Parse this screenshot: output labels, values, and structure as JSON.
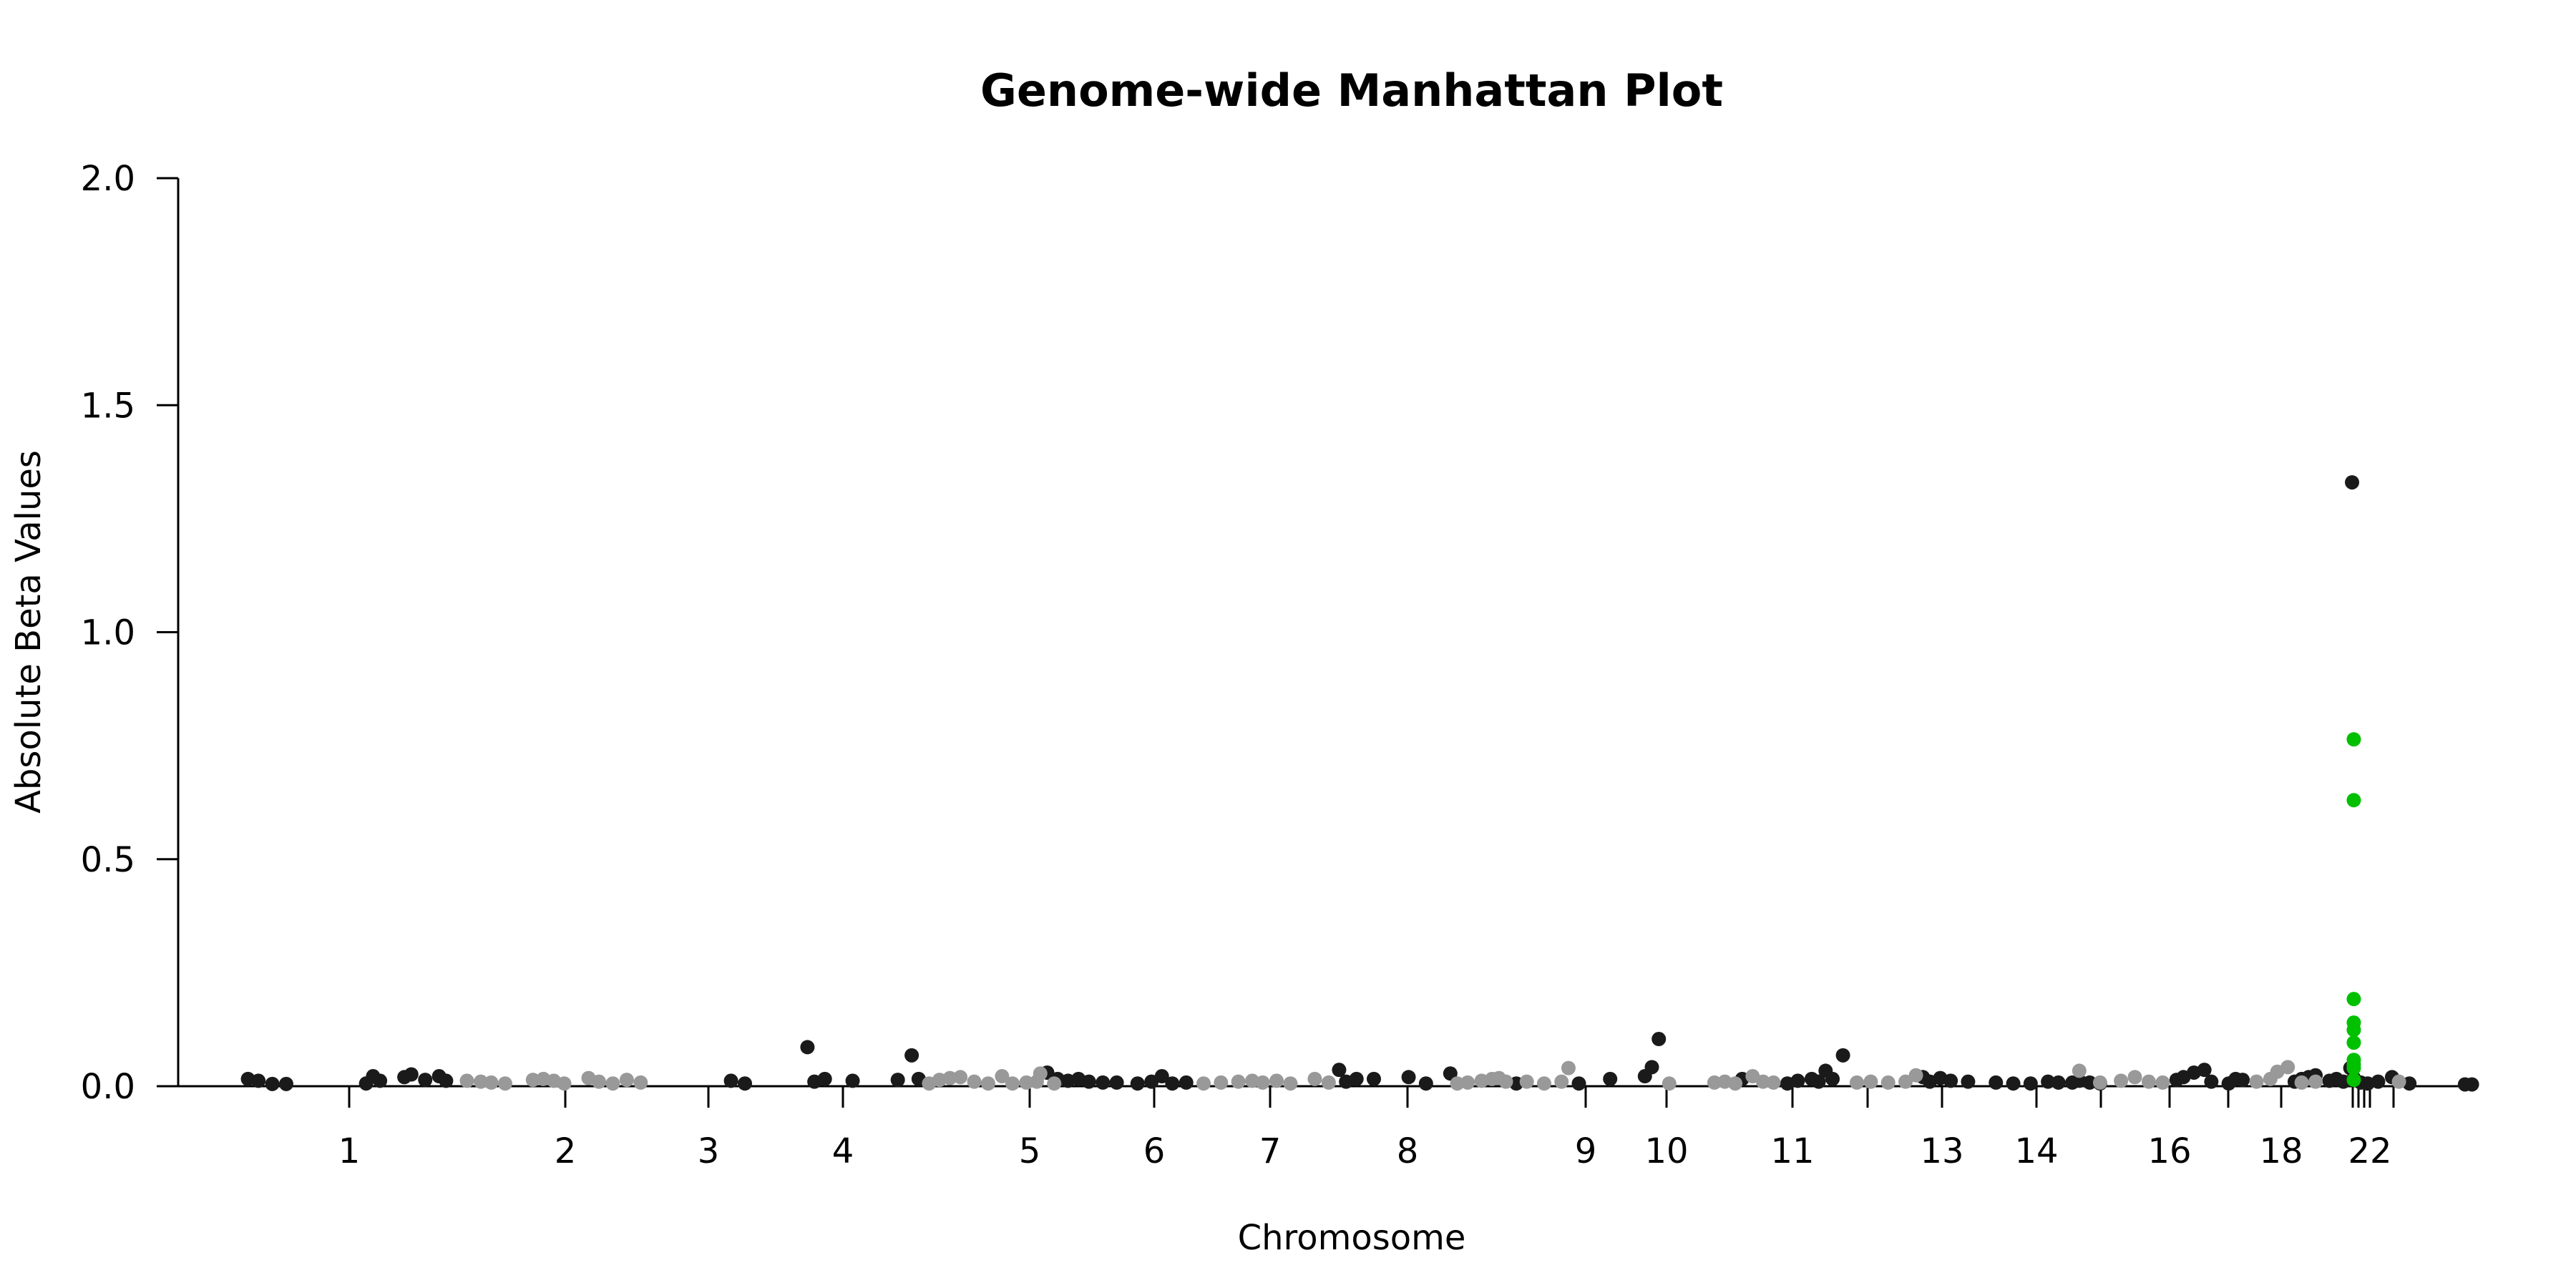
{
  "chart_data": {
    "type": "scatter",
    "title": "Genome-wide Manhattan Plot",
    "xlabel": "Chromosome",
    "ylabel": "Absolute Beta Values",
    "ylim": [
      0,
      2.0
    ],
    "y_ticks": [
      "0.0",
      "0.5",
      "1.0",
      "1.5",
      "2.0"
    ],
    "x_tick_labels": [
      "1",
      "2",
      "3",
      "4",
      "5",
      "6",
      "7",
      "8",
      "9",
      "10",
      "11",
      "13",
      "14",
      "16",
      "18",
      "22"
    ],
    "colors": {
      "dark": "#1a1a1a",
      "light": "#999999",
      "highlight": "#00c000"
    },
    "grid": false,
    "legend": "none",
    "series": [
      {
        "color_key": "dark",
        "points": [
          [
            0.3,
            0.016
          ],
          [
            0.6,
            0.012
          ],
          [
            1.0,
            0.005
          ],
          [
            1.4,
            0.005
          ],
          [
            3.7,
            0.006
          ],
          [
            3.9,
            0.022
          ],
          [
            4.1,
            0.012
          ],
          [
            4.8,
            0.02
          ],
          [
            5.0,
            0.026
          ],
          [
            5.4,
            0.014
          ],
          [
            5.8,
            0.022
          ],
          [
            6.0,
            0.012
          ],
          [
            14.2,
            0.012
          ],
          [
            14.6,
            0.006
          ],
          [
            16.4,
            0.086
          ],
          [
            16.6,
            0.01
          ],
          [
            16.9,
            0.016
          ],
          [
            17.7,
            0.012
          ],
          [
            19.0,
            0.014
          ],
          [
            19.4,
            0.068
          ],
          [
            19.6,
            0.016
          ],
          [
            23.3,
            0.03
          ],
          [
            23.6,
            0.016
          ],
          [
            23.9,
            0.012
          ],
          [
            24.2,
            0.016
          ],
          [
            24.5,
            0.01
          ],
          [
            24.9,
            0.008
          ],
          [
            25.3,
            0.008
          ],
          [
            25.9,
            0.006
          ],
          [
            26.3,
            0.01
          ],
          [
            26.6,
            0.022
          ],
          [
            26.9,
            0.006
          ],
          [
            27.3,
            0.008
          ],
          [
            31.7,
            0.036
          ],
          [
            31.9,
            0.01
          ],
          [
            32.2,
            0.016
          ],
          [
            32.7,
            0.016
          ],
          [
            33.7,
            0.02
          ],
          [
            34.2,
            0.006
          ],
          [
            34.9,
            0.028
          ],
          [
            36.8,
            0.006
          ],
          [
            38.6,
            0.006
          ],
          [
            39.5,
            0.016
          ],
          [
            40.5,
            0.022
          ],
          [
            40.7,
            0.042
          ],
          [
            40.9,
            0.104
          ],
          [
            43.3,
            0.016
          ],
          [
            44.6,
            0.006
          ],
          [
            44.9,
            0.012
          ],
          [
            45.3,
            0.016
          ],
          [
            45.5,
            0.01
          ],
          [
            45.7,
            0.034
          ],
          [
            45.9,
            0.016
          ],
          [
            46.2,
            0.068
          ],
          [
            48.5,
            0.02
          ],
          [
            48.7,
            0.01
          ],
          [
            49.0,
            0.018
          ],
          [
            49.3,
            0.012
          ],
          [
            49.8,
            0.01
          ],
          [
            50.6,
            0.008
          ],
          [
            51.1,
            0.006
          ],
          [
            51.6,
            0.006
          ],
          [
            52.1,
            0.01
          ],
          [
            52.4,
            0.008
          ],
          [
            52.8,
            0.008
          ],
          [
            53.0,
            0.012
          ],
          [
            53.3,
            0.008
          ],
          [
            53.6,
            0.006
          ],
          [
            55.8,
            0.014
          ],
          [
            56.0,
            0.02
          ],
          [
            56.3,
            0.03
          ],
          [
            56.6,
            0.036
          ],
          [
            56.8,
            0.01
          ],
          [
            57.3,
            0.006
          ],
          [
            57.5,
            0.016
          ],
          [
            57.7,
            0.014
          ],
          [
            59.2,
            0.01
          ],
          [
            59.4,
            0.016
          ],
          [
            59.6,
            0.02
          ],
          [
            59.8,
            0.024
          ],
          [
            60.2,
            0.012
          ],
          [
            60.4,
            0.016
          ],
          [
            60.6,
            0.01
          ],
          [
            60.8,
            0.04
          ],
          [
            60.9,
            0.018
          ],
          [
            61.1,
            0.008
          ],
          [
            61.3,
            0.006
          ],
          [
            61.6,
            0.01
          ],
          [
            62.0,
            0.02
          ],
          [
            62.5,
            0.006
          ],
          [
            64.1,
            0.004
          ],
          [
            64.3,
            0.004
          ],
          [
            60.85,
            1.33
          ]
        ]
      },
      {
        "color_key": "light",
        "points": [
          [
            6.6,
            0.012
          ],
          [
            7.0,
            0.01
          ],
          [
            7.3,
            0.008
          ],
          [
            7.7,
            0.006
          ],
          [
            8.5,
            0.014
          ],
          [
            8.8,
            0.016
          ],
          [
            9.1,
            0.012
          ],
          [
            9.4,
            0.006
          ],
          [
            10.1,
            0.018
          ],
          [
            10.4,
            0.01
          ],
          [
            10.8,
            0.006
          ],
          [
            11.2,
            0.014
          ],
          [
            11.6,
            0.008
          ],
          [
            19.9,
            0.006
          ],
          [
            20.2,
            0.014
          ],
          [
            20.5,
            0.018
          ],
          [
            20.8,
            0.02
          ],
          [
            21.2,
            0.01
          ],
          [
            21.6,
            0.006
          ],
          [
            22.0,
            0.022
          ],
          [
            22.3,
            0.006
          ],
          [
            22.7,
            0.008
          ],
          [
            23.0,
            0.01
          ],
          [
            23.5,
            0.006
          ],
          [
            23.1,
            0.028
          ],
          [
            27.8,
            0.006
          ],
          [
            28.3,
            0.008
          ],
          [
            28.8,
            0.01
          ],
          [
            29.2,
            0.012
          ],
          [
            29.5,
            0.008
          ],
          [
            29.9,
            0.012
          ],
          [
            30.3,
            0.006
          ],
          [
            31.0,
            0.016
          ],
          [
            31.4,
            0.008
          ],
          [
            35.1,
            0.006
          ],
          [
            35.4,
            0.008
          ],
          [
            35.8,
            0.012
          ],
          [
            36.1,
            0.016
          ],
          [
            36.3,
            0.018
          ],
          [
            36.5,
            0.01
          ],
          [
            37.1,
            0.01
          ],
          [
            37.6,
            0.006
          ],
          [
            38.1,
            0.01
          ],
          [
            38.3,
            0.04
          ],
          [
            41.2,
            0.006
          ],
          [
            42.5,
            0.008
          ],
          [
            42.8,
            0.01
          ],
          [
            43.1,
            0.006
          ],
          [
            43.6,
            0.022
          ],
          [
            43.9,
            0.01
          ],
          [
            44.2,
            0.008
          ],
          [
            46.6,
            0.008
          ],
          [
            47.0,
            0.01
          ],
          [
            47.5,
            0.008
          ],
          [
            48.0,
            0.01
          ],
          [
            48.3,
            0.024
          ],
          [
            53.0,
            0.034
          ],
          [
            53.6,
            0.008
          ],
          [
            54.2,
            0.012
          ],
          [
            54.6,
            0.02
          ],
          [
            55.0,
            0.01
          ],
          [
            55.4,
            0.008
          ],
          [
            58.1,
            0.01
          ],
          [
            58.5,
            0.016
          ],
          [
            58.7,
            0.032
          ],
          [
            59.0,
            0.042
          ],
          [
            59.4,
            0.008
          ],
          [
            59.8,
            0.01
          ],
          [
            62.2,
            0.01
          ]
        ]
      },
      {
        "color_key": "highlight",
        "points": [
          [
            60.9,
            0.764
          ],
          [
            60.9,
            0.63
          ],
          [
            60.9,
            0.192
          ],
          [
            60.9,
            0.14
          ],
          [
            60.9,
            0.124
          ],
          [
            60.9,
            0.096
          ],
          [
            60.9,
            0.058
          ],
          [
            60.9,
            0.048
          ],
          [
            60.9,
            0.04
          ],
          [
            60.9,
            0.014
          ]
        ]
      }
    ]
  }
}
